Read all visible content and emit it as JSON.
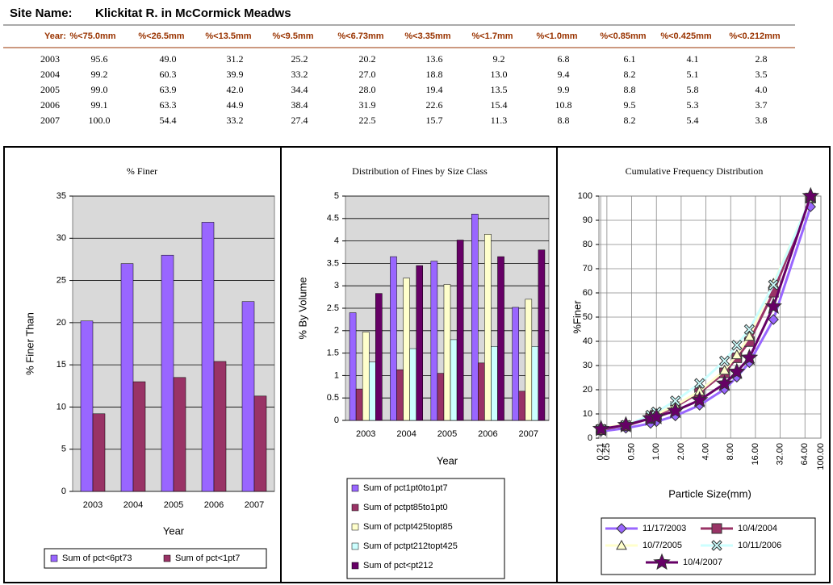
{
  "header": {
    "label": "Site Name:",
    "name": "Klickitat R. in McCormick Meadws"
  },
  "table": {
    "columns": [
      "Year:",
      "%<75.0mm",
      "%<26.5mm",
      "%<13.5mm",
      "%<9.5mm",
      "%<6.73mm",
      "%<3.35mm",
      "%<1.7mm",
      "%<1.0mm",
      "%<0.85mm",
      "%<0.425mm",
      "%<0.212mm"
    ],
    "rows": [
      [
        "2003",
        "95.6",
        "49.0",
        "31.2",
        "25.2",
        "20.2",
        "13.6",
        "9.2",
        "6.8",
        "6.1",
        "4.1",
        "2.8"
      ],
      [
        "2004",
        "99.2",
        "60.3",
        "39.9",
        "33.2",
        "27.0",
        "18.8",
        "13.0",
        "9.4",
        "8.2",
        "5.1",
        "3.5"
      ],
      [
        "2005",
        "99.0",
        "63.9",
        "42.0",
        "34.4",
        "28.0",
        "19.4",
        "13.5",
        "9.9",
        "8.8",
        "5.8",
        "4.0"
      ],
      [
        "2006",
        "99.1",
        "63.3",
        "44.9",
        "38.4",
        "31.9",
        "22.6",
        "15.4",
        "10.8",
        "9.5",
        "5.3",
        "3.7"
      ],
      [
        "2007",
        "100.0",
        "54.4",
        "33.2",
        "27.4",
        "22.5",
        "15.7",
        "11.3",
        "8.8",
        "8.2",
        "5.4",
        "3.8"
      ]
    ]
  },
  "chart_data": [
    {
      "type": "bar",
      "title": "% Finer",
      "y_label": "% Finer Than",
      "x_label": "Year",
      "categories": [
        "2003",
        "2004",
        "2005",
        "2006",
        "2007"
      ],
      "series": [
        {
          "name": "Sum of pct<6pt73",
          "color": "#9966ff",
          "values": [
            20.2,
            27.0,
            28.0,
            31.9,
            22.5
          ]
        },
        {
          "name": "Sum of pct<1pt7",
          "color": "#993366",
          "values": [
            9.2,
            13.0,
            13.5,
            15.4,
            11.3
          ]
        }
      ],
      "ylim": [
        0,
        35
      ],
      "yticks": [
        0,
        5,
        10,
        15,
        20,
        25,
        30,
        35
      ],
      "grid": true,
      "legend": "bottom"
    },
    {
      "type": "bar",
      "title": "Distribution of Fines by Size Class",
      "y_label": "% By Volume",
      "x_label": "Year",
      "categories": [
        "2003",
        "2004",
        "2005",
        "2006",
        "2007"
      ],
      "series": [
        {
          "name": "Sum of pct1pt0to1pt7",
          "color": "#9966ff",
          "values": [
            2.4,
            3.65,
            3.55,
            4.6,
            2.52
          ]
        },
        {
          "name": "Sum of pctpt85to1pt0",
          "color": "#993366",
          "values": [
            0.7,
            1.13,
            1.05,
            1.28,
            0.65
          ]
        },
        {
          "name": "Sum of pctpt425topt85",
          "color": "#ffffcc",
          "values": [
            1.97,
            3.17,
            3.03,
            4.15,
            2.7
          ]
        },
        {
          "name": "Sum of pctpt212topt425",
          "color": "#ccffff",
          "values": [
            1.3,
            1.6,
            1.8,
            1.65,
            1.65
          ]
        },
        {
          "name": "Sum of pct<pt212",
          "color": "#660066",
          "values": [
            2.83,
            3.45,
            4.02,
            3.65,
            3.8
          ]
        }
      ],
      "ylim": [
        0,
        5
      ],
      "yticks": [
        0,
        0.5,
        1,
        1.5,
        2,
        2.5,
        3,
        3.5,
        4,
        4.5,
        5
      ],
      "grid": true,
      "legend": "bottom"
    },
    {
      "type": "line",
      "title": "Cumulative Frequency Distribution",
      "y_label": "%Finer",
      "x_label": "Particle Size(mm)",
      "x": [
        0.212,
        0.425,
        0.85,
        1.0,
        1.7,
        3.35,
        6.73,
        9.5,
        13.5,
        26.5,
        75.0
      ],
      "series": [
        {
          "name": "11/17/2003",
          "color": "#9966ff",
          "marker": "diamond",
          "values": [
            2.8,
            4.1,
            6.1,
            6.8,
            9.2,
            13.6,
            20.2,
            25.2,
            31.2,
            49.0,
            95.6
          ]
        },
        {
          "name": "10/4/2004",
          "color": "#993366",
          "marker": "square",
          "values": [
            3.5,
            5.1,
            8.2,
            9.4,
            13.0,
            18.8,
            27.0,
            33.2,
            39.9,
            60.3,
            99.2
          ]
        },
        {
          "name": "10/7/2005",
          "color": "#ffffcc",
          "marker": "triangle",
          "values": [
            4.0,
            5.8,
            8.8,
            9.9,
            13.5,
            19.4,
            28.0,
            34.4,
            42.0,
            63.9,
            99.0
          ]
        },
        {
          "name": "10/11/2006",
          "color": "#ccffff",
          "marker": "x",
          "values": [
            3.7,
            5.3,
            9.5,
            10.8,
            15.4,
            22.6,
            31.9,
            38.4,
            44.9,
            63.3,
            99.1
          ]
        },
        {
          "name": "10/4/2007",
          "color": "#660066",
          "marker": "star",
          "values": [
            3.8,
            5.4,
            8.2,
            8.8,
            11.3,
            15.7,
            22.5,
            27.4,
            33.2,
            54.4,
            100.0
          ]
        }
      ],
      "xscale": "log",
      "xlim": [
        0.2,
        100
      ],
      "xticks": [
        0.21,
        0.25,
        {
          "value": 0.5,
          "label": "0.50"
        },
        {
          "value": 1,
          "label": "1.00"
        },
        {
          "value": 2,
          "label": "2.00"
        },
        {
          "value": 4,
          "label": "4.00"
        },
        {
          "value": 8,
          "label": "8.00"
        },
        {
          "value": 16,
          "label": "16.00"
        },
        {
          "value": 32,
          "label": "32.00"
        },
        {
          "value": 64,
          "label": "64.00"
        },
        {
          "value": 100,
          "label": "100.00"
        }
      ],
      "ylim": [
        0,
        100
      ],
      "yticks": [
        0,
        10,
        20,
        30,
        40,
        50,
        60,
        70,
        80,
        90,
        100
      ],
      "grid": true,
      "legend": "bottom"
    }
  ]
}
